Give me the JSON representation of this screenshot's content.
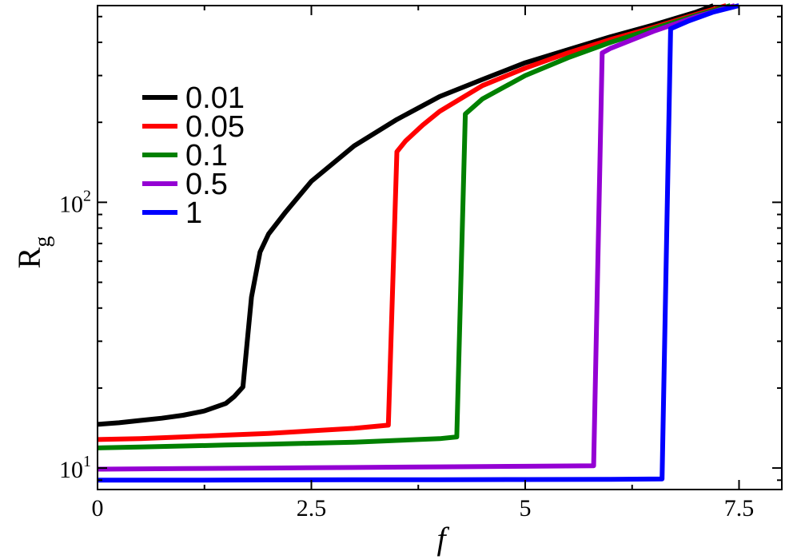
{
  "chart_data": {
    "type": "line",
    "title": "",
    "xlabel": "f",
    "ylabel_main": "R",
    "ylabel_sub": "g",
    "xlim": [
      0,
      8
    ],
    "ylim": [
      8.3,
      550
    ],
    "yscale": "log",
    "x_ticks": [
      {
        "value": 0,
        "label": "0"
      },
      {
        "value": 2.5,
        "label": "2.5"
      },
      {
        "value": 5,
        "label": "5"
      },
      {
        "value": 7.5,
        "label": "7.5"
      }
    ],
    "y_ticks": [
      {
        "value": 10,
        "base": "10",
        "exp": "1"
      },
      {
        "value": 100,
        "base": "10",
        "exp": "2"
      }
    ],
    "grid": false,
    "legend_position": "upper-left",
    "series": [
      {
        "name": "0.01",
        "color": "#000000",
        "x": [
          0,
          0.25,
          0.5,
          0.75,
          1.0,
          1.25,
          1.5,
          1.6,
          1.7,
          1.75,
          1.8,
          1.9,
          2.0,
          2.2,
          2.5,
          3.0,
          3.5,
          4.0,
          4.5,
          5.0,
          5.5,
          6.0,
          6.5,
          7.0,
          7.2
        ],
        "y": [
          14.6,
          14.8,
          15.1,
          15.4,
          15.8,
          16.4,
          17.5,
          18.6,
          20.2,
          30,
          44,
          65,
          76,
          92,
          120,
          163,
          205,
          250,
          290,
          335,
          375,
          420,
          465,
          520,
          550
        ]
      },
      {
        "name": "0.05",
        "color": "#ff0000",
        "x": [
          0,
          0.5,
          1.0,
          1.5,
          2.0,
          2.5,
          3.0,
          3.4,
          3.5,
          3.6,
          3.8,
          4.0,
          4.5,
          5.0,
          5.5,
          6.0,
          6.5,
          7.0,
          7.35
        ],
        "y": [
          12.8,
          12.9,
          13.1,
          13.3,
          13.5,
          13.8,
          14.1,
          14.5,
          155,
          170,
          195,
          220,
          275,
          320,
          365,
          410,
          455,
          510,
          550
        ]
      },
      {
        "name": "0.1",
        "color": "#008000",
        "x": [
          0,
          0.5,
          1.0,
          1.5,
          2.0,
          2.5,
          3.0,
          3.5,
          4.0,
          4.2,
          4.3,
          4.5,
          5.0,
          5.5,
          6.0,
          6.5,
          7.0,
          7.4
        ],
        "y": [
          11.9,
          12.0,
          12.1,
          12.2,
          12.3,
          12.4,
          12.5,
          12.7,
          12.9,
          13.1,
          215,
          245,
          300,
          350,
          400,
          450,
          505,
          550
        ]
      },
      {
        "name": "0.5",
        "color": "#9400d3",
        "x": [
          0,
          1.0,
          2.0,
          3.0,
          4.0,
          5.0,
          5.8,
          5.9,
          6.0,
          6.5,
          7.0,
          7.45
        ],
        "y": [
          9.9,
          9.95,
          10.0,
          10.05,
          10.1,
          10.15,
          10.2,
          365,
          380,
          440,
          500,
          550
        ]
      },
      {
        "name": "1",
        "color": "#0000ff",
        "x": [
          0,
          1.0,
          2.0,
          3.0,
          4.0,
          5.0,
          6.0,
          6.6,
          6.7,
          6.9,
          7.2,
          7.5
        ],
        "y": [
          9.0,
          9.0,
          9.02,
          9.03,
          9.04,
          9.05,
          9.07,
          9.1,
          450,
          480,
          520,
          550
        ]
      }
    ]
  }
}
